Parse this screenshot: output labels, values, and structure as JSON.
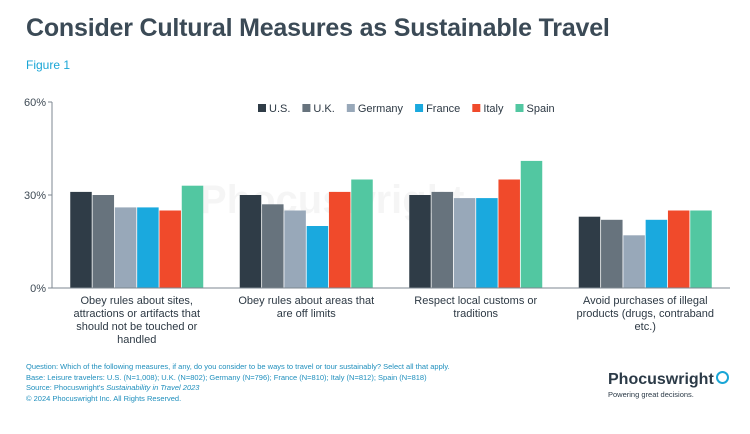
{
  "header": {
    "title": "Consider Cultural Measures as Sustainable Travel",
    "figure": "Figure 1"
  },
  "chart_data": {
    "type": "bar",
    "categories": [
      [
        "Obey rules about sites,",
        "attractions or artifacts that",
        "should not be touched or",
        "handled"
      ],
      [
        "Obey rules about areas that",
        "are off limits"
      ],
      [
        "Respect local customs or",
        "traditions"
      ],
      [
        "Avoid purchases of illegal",
        "products (drugs, contraband",
        "etc.)"
      ]
    ],
    "series": [
      {
        "name": "U.S.",
        "color": "#2f3c47",
        "values": [
          31,
          30,
          30,
          23
        ]
      },
      {
        "name": "U.K.",
        "color": "#67737d",
        "values": [
          30,
          27,
          31,
          22
        ]
      },
      {
        "name": "Germany",
        "color": "#98a8b9",
        "values": [
          26,
          25,
          29,
          17
        ]
      },
      {
        "name": "France",
        "color": "#1aa9de",
        "values": [
          26,
          20,
          29,
          22
        ]
      },
      {
        "name": "Italy",
        "color": "#f04a2b",
        "values": [
          25,
          31,
          35,
          25
        ]
      },
      {
        "name": "Spain",
        "color": "#52c7a1",
        "values": [
          33,
          35,
          41,
          25
        ]
      }
    ],
    "yticks": [
      "0%",
      "30%",
      "60%"
    ],
    "ylim": [
      0,
      60
    ],
    "legend_position": "top",
    "grid": false
  },
  "notes": {
    "question": "Question: Which of the following measures, if any, do you consider to be ways to travel or tour sustainably? Select all that apply.",
    "base": "Base: Leisure travelers: U.S. (N=1,008); U.K. (N=802); Germany (N=796); France (N=810); Italy (N=812); Spain (N=818)",
    "source_prefix": "Source: Phocuswright's ",
    "source_title": "Sustainability in Travel 2023",
    "copyright": "© 2024 Phocuswright Inc. All Rights Reserved."
  },
  "brand": {
    "watermark": "Phocuswright",
    "name": "Phocuswright",
    "tagline": "Powering great decisions."
  }
}
